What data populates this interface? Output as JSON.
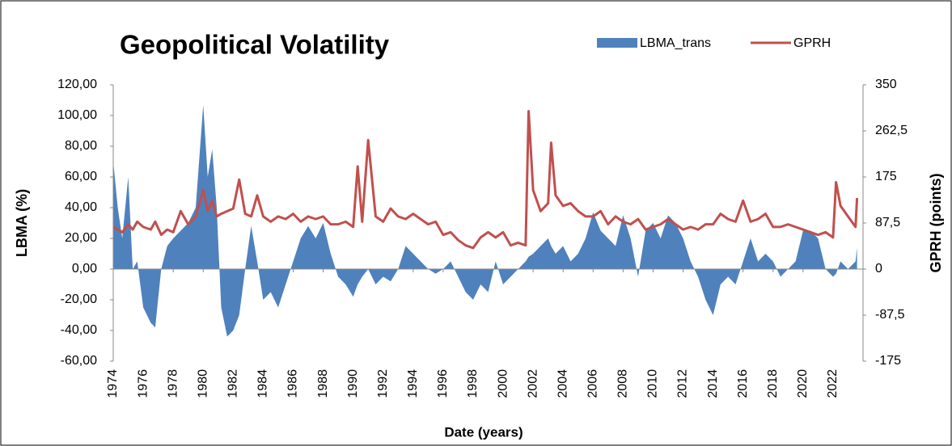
{
  "chart_data": {
    "type": "area-line",
    "title": "Geopolitical Volatility",
    "xlabel": "Date (years)",
    "ylabel": "LBMA (%)",
    "y2label": "GPRH (points)",
    "legend": "top-right",
    "xlim": [
      1974,
      2024
    ],
    "xticks": [
      1974,
      1976,
      1978,
      1980,
      1982,
      1984,
      1986,
      1988,
      1990,
      1992,
      1994,
      1996,
      1998,
      2000,
      2002,
      2004,
      2006,
      2008,
      2010,
      2012,
      2014,
      2016,
      2018,
      2020,
      2022
    ],
    "ylim": [
      -60,
      120
    ],
    "yticks": [
      {
        "value": -60,
        "label": "-60,00"
      },
      {
        "value": -40,
        "label": "-40,00"
      },
      {
        "value": -20,
        "label": "-20,00"
      },
      {
        "value": 0,
        "label": "0,00"
      },
      {
        "value": 20,
        "label": "20,00"
      },
      {
        "value": 40,
        "label": "40,00"
      },
      {
        "value": 60,
        "label": "60,00"
      },
      {
        "value": 80,
        "label": "80,00"
      },
      {
        "value": 100,
        "label": "100,00"
      },
      {
        "value": 120,
        "label": "120,00"
      }
    ],
    "y2lim": [
      -175,
      350
    ],
    "y2ticks": [
      -175,
      {
        "value": -87.5,
        "label": "-87,5"
      },
      0,
      {
        "value": 87.5,
        "label": "87,5"
      },
      175,
      {
        "value": 262.5,
        "label": "262,5"
      },
      350
    ],
    "x": [
      1974,
      1974.3,
      1974.6,
      1975,
      1975.3,
      1975.6,
      1976,
      1976.5,
      1976.8,
      1977.2,
      1977.6,
      1978,
      1978.5,
      1979,
      1979.5,
      1980,
      1980.3,
      1980.6,
      1980.9,
      1981.2,
      1981.6,
      1982,
      1982.4,
      1982.8,
      1983.2,
      1983.6,
      1984,
      1984.5,
      1985,
      1985.5,
      1986,
      1986.5,
      1987,
      1987.5,
      1988,
      1988.5,
      1989,
      1989.5,
      1990,
      1990.3,
      1990.6,
      1991,
      1991.5,
      1992,
      1992.5,
      1993,
      1993.5,
      1994,
      1994.5,
      1995,
      1995.5,
      1996,
      1996.5,
      1997,
      1997.5,
      1998,
      1998.5,
      1999,
      1999.5,
      2000,
      2000.5,
      2001,
      2001.5,
      2001.7,
      2002,
      2002.5,
      2003,
      2003.2,
      2003.5,
      2004,
      2004.5,
      2005,
      2005.5,
      2006,
      2006.5,
      2007,
      2007.5,
      2008,
      2008.5,
      2009,
      2009.5,
      2010,
      2010.5,
      2011,
      2011.5,
      2012,
      2012.5,
      2013,
      2013.5,
      2014,
      2014.5,
      2015,
      2015.5,
      2016,
      2016.5,
      2017,
      2017.5,
      2018,
      2018.5,
      2019,
      2019.5,
      2020,
      2020.5,
      2021,
      2021.5,
      2022,
      2022.2,
      2022.5,
      2023,
      2023.5,
      2023.6
    ],
    "series": [
      {
        "name": "LBMA_trans",
        "color": "#4f81bd",
        "kind": "area",
        "values": [
          70,
          40,
          20,
          60,
          0,
          5,
          -25,
          -35,
          -38,
          0,
          15,
          20,
          25,
          30,
          40,
          107,
          60,
          78,
          40,
          -25,
          -44,
          -40,
          -30,
          0,
          28,
          5,
          -20,
          -15,
          -25,
          -10,
          5,
          20,
          28,
          20,
          30,
          10,
          -5,
          -10,
          -18,
          -10,
          -5,
          0,
          -10,
          -5,
          -8,
          0,
          15,
          10,
          5,
          0,
          -3,
          0,
          5,
          -5,
          -15,
          -20,
          -10,
          -15,
          5,
          -10,
          -5,
          0,
          5,
          8,
          10,
          15,
          20,
          15,
          10,
          15,
          5,
          10,
          20,
          37,
          25,
          20,
          15,
          35,
          20,
          -5,
          25,
          30,
          20,
          35,
          30,
          20,
          5,
          -5,
          -20,
          -30,
          -10,
          -5,
          -10,
          5,
          20,
          5,
          10,
          5,
          -5,
          0,
          5,
          25,
          25,
          20,
          0,
          -5,
          -3,
          5,
          0,
          5,
          14
        ]
      },
      {
        "name": "GPRH",
        "color": "#c0504d",
        "kind": "line",
        "axis": "y2",
        "values": [
          80,
          75,
          70,
          85,
          75,
          90,
          80,
          75,
          90,
          65,
          75,
          70,
          110,
          85,
          100,
          150,
          110,
          130,
          100,
          105,
          110,
          115,
          170,
          105,
          100,
          140,
          100,
          90,
          100,
          95,
          105,
          90,
          100,
          95,
          100,
          85,
          85,
          90,
          80,
          195,
          90,
          245,
          100,
          90,
          115,
          100,
          95,
          105,
          95,
          85,
          90,
          65,
          70,
          55,
          45,
          40,
          60,
          70,
          60,
          70,
          45,
          50,
          45,
          300,
          150,
          110,
          125,
          240,
          140,
          120,
          125,
          110,
          100,
          100,
          110,
          85,
          100,
          90,
          85,
          95,
          75,
          80,
          85,
          95,
          85,
          75,
          80,
          75,
          85,
          85,
          105,
          95,
          90,
          130,
          90,
          95,
          105,
          80,
          80,
          85,
          80,
          75,
          70,
          65,
          70,
          60,
          165,
          120,
          100,
          80,
          135
        ]
      }
    ]
  }
}
